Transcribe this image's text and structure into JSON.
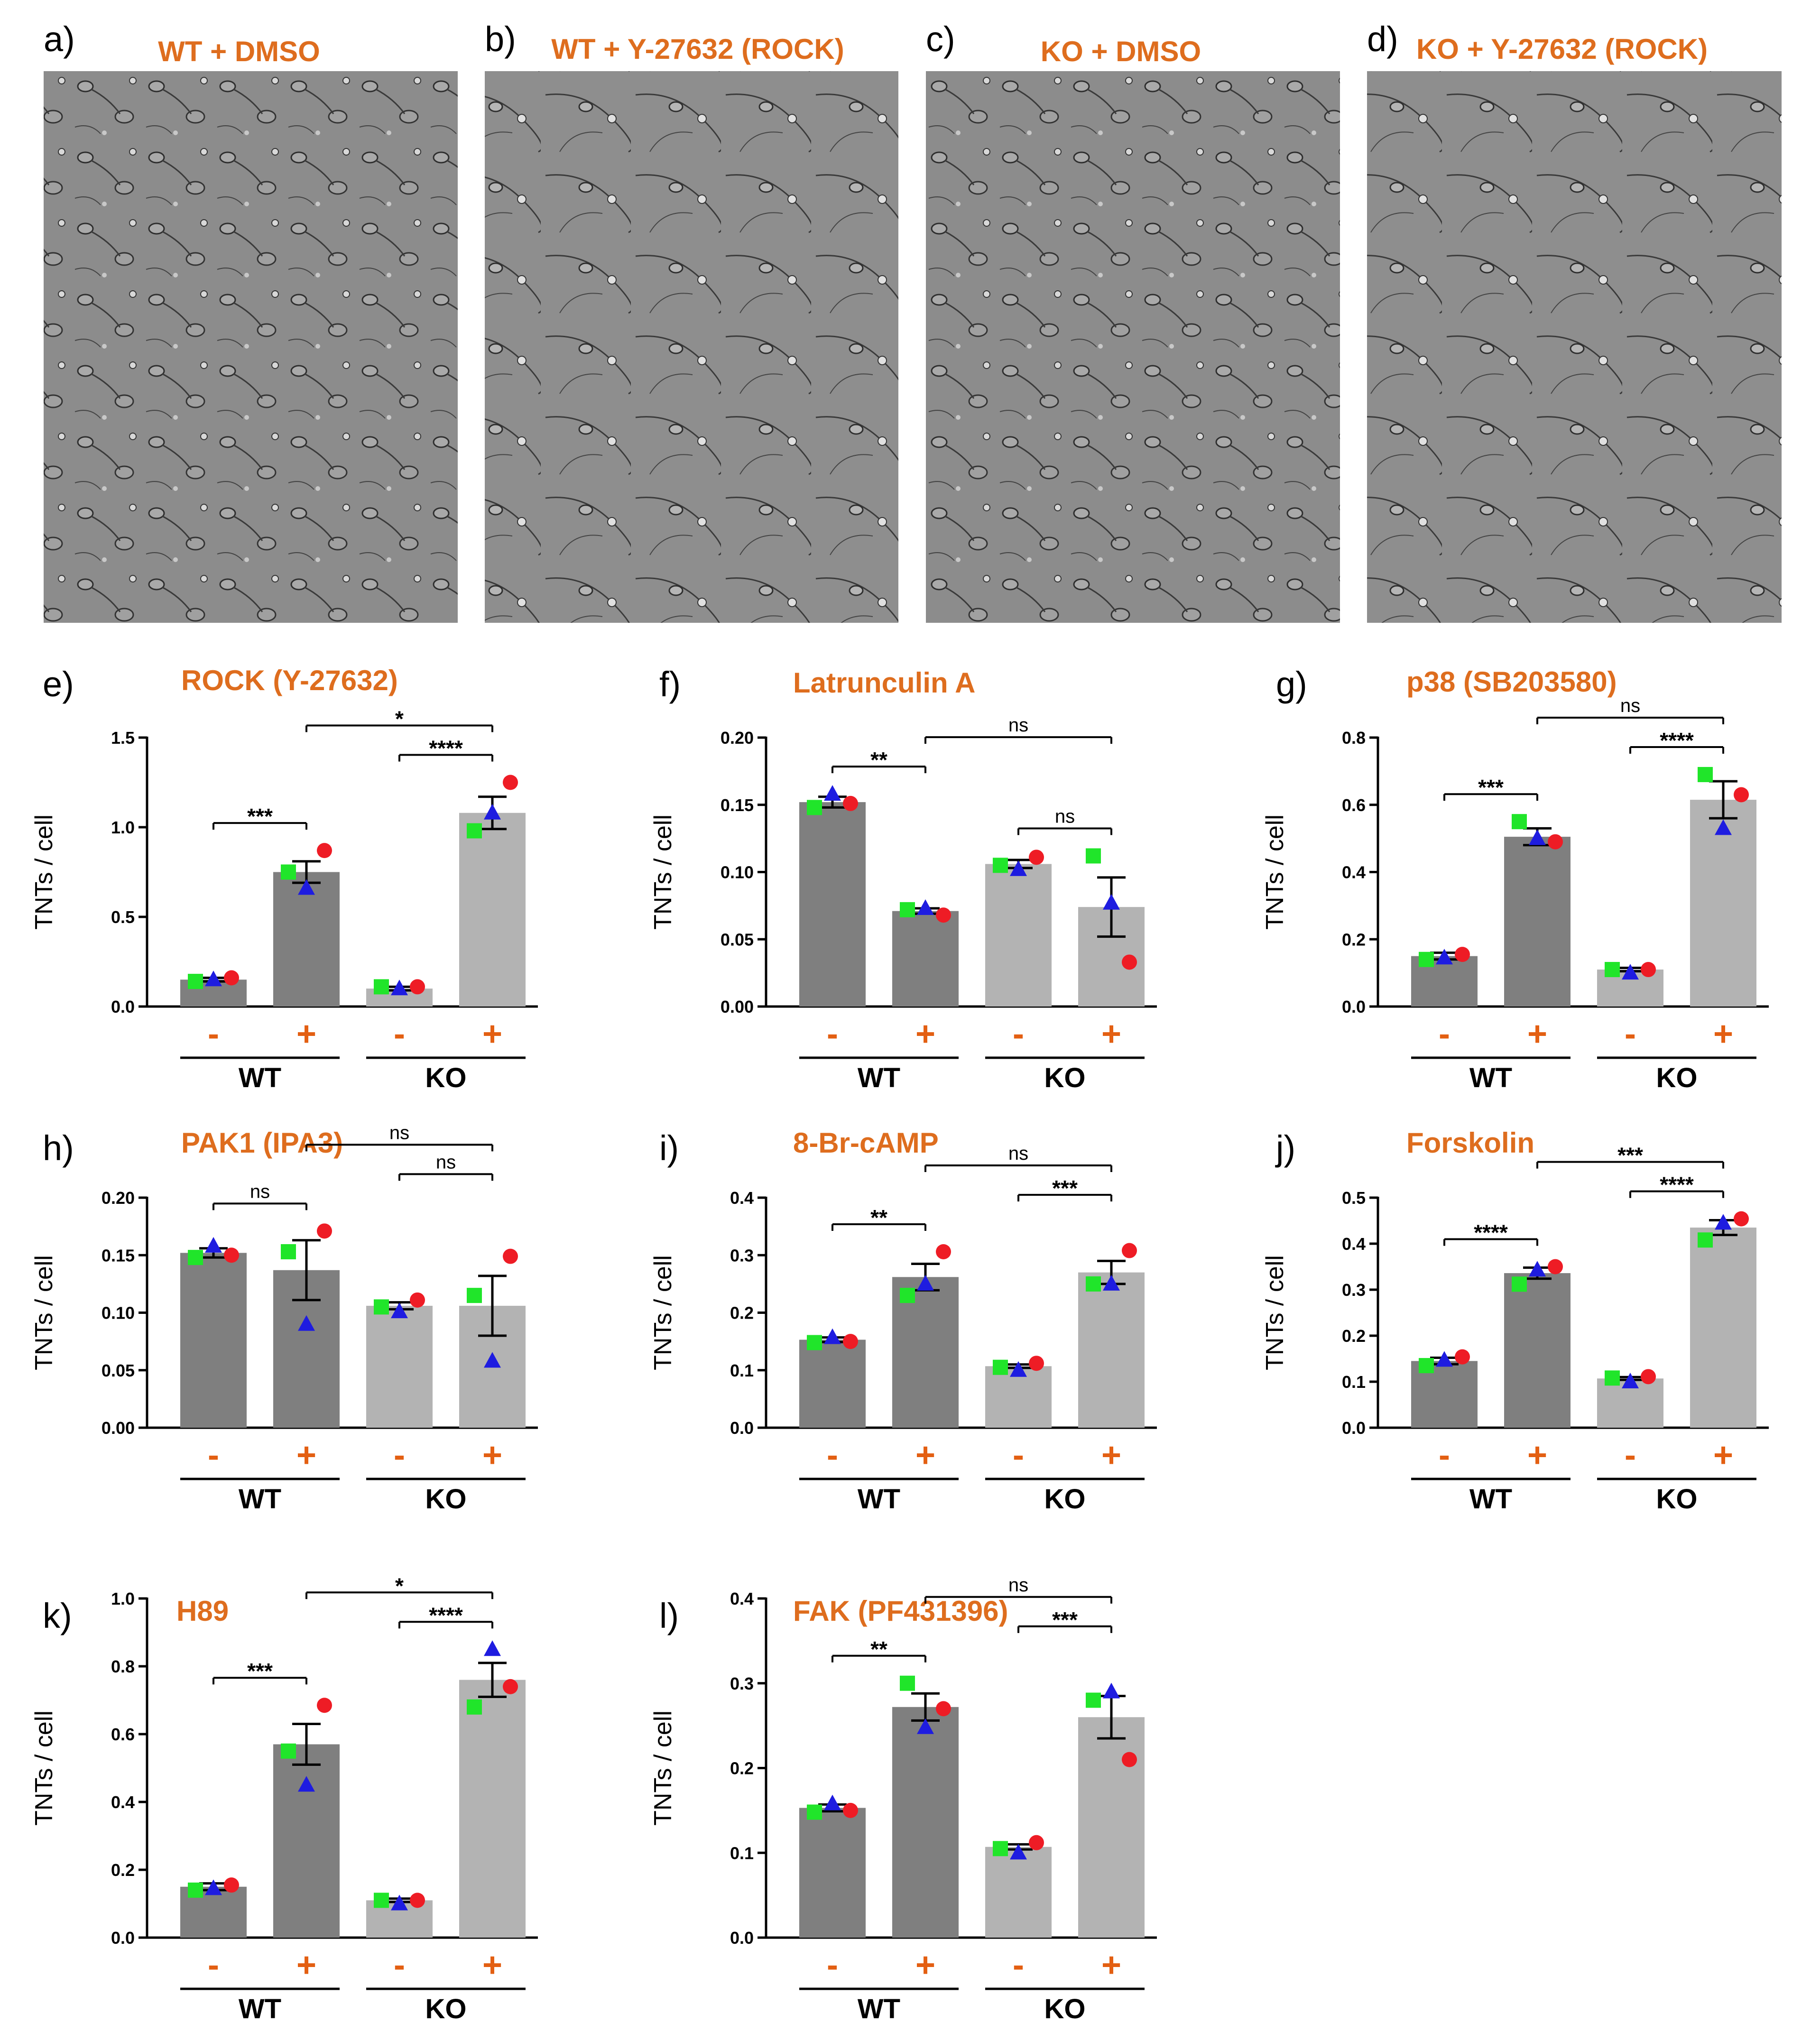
{
  "colors": {
    "title": "#DE6D1E",
    "wt_bar": "#7F7F7F",
    "ko_bar": "#B3B3B3",
    "rep_red": "#EE1C25",
    "rep_green": "#20E52A",
    "rep_blue": "#1E1CE0",
    "minus_sign": "#E35F12",
    "plus_sign": "#E35F12"
  },
  "micrographs": [
    {
      "label": "a)",
      "title": "WT + DMSO"
    },
    {
      "label": "b)",
      "title": "WT + Y-27632 (ROCK)"
    },
    {
      "label": "c)",
      "title": "KO + DMSO"
    },
    {
      "label": "d)",
      "title": "KO + Y-27632 (ROCK)"
    }
  ],
  "chart_data": [
    {
      "label": "e)",
      "title": "ROCK (Y-27632)",
      "type": "bar",
      "ylabel": "TNTs / cell",
      "yticks": [
        "0.0",
        "0.5",
        "1.0",
        "1.5"
      ],
      "ylim": [
        0,
        1.5
      ],
      "categories": [
        "WT -",
        "WT +",
        "KO -",
        "KO +"
      ],
      "signs": [
        "-",
        "+",
        "-",
        "+"
      ],
      "groups": [
        "WT",
        "KO"
      ],
      "values": [
        0.15,
        0.75,
        0.1,
        1.08
      ],
      "errors": [
        0.01,
        0.06,
        0.01,
        0.09
      ],
      "replicates": [
        {
          "name": "red",
          "values": [
            0.16,
            0.87,
            0.11,
            1.25
          ]
        },
        {
          "name": "green",
          "values": [
            0.14,
            0.75,
            0.11,
            0.98
          ]
        },
        {
          "name": "blue",
          "values": [
            0.15,
            0.66,
            0.1,
            1.08
          ]
        }
      ],
      "comparisons": [
        {
          "from": 0,
          "to": 1,
          "label": "***"
        },
        {
          "from": 2,
          "to": 3,
          "label": "****"
        },
        {
          "from": 1,
          "to": 3,
          "label": "*"
        }
      ]
    },
    {
      "label": "f)",
      "title": "Latrunculin A",
      "type": "bar",
      "ylabel": "TNTs / cell",
      "yticks": [
        "0.00",
        "0.05",
        "0.10",
        "0.15",
        "0.20"
      ],
      "ylim": [
        0,
        0.2
      ],
      "categories": [
        "WT -",
        "WT +",
        "KO -",
        "KO +"
      ],
      "signs": [
        "-",
        "+",
        "-",
        "+"
      ],
      "groups": [
        "WT",
        "KO"
      ],
      "values": [
        0.152,
        0.071,
        0.106,
        0.074
      ],
      "errors": [
        0.004,
        0.002,
        0.003,
        0.022
      ],
      "replicates": [
        {
          "name": "red",
          "values": [
            0.151,
            0.068,
            0.111,
            0.033
          ]
        },
        {
          "name": "green",
          "values": [
            0.148,
            0.072,
            0.105,
            0.112
          ]
        },
        {
          "name": "blue",
          "values": [
            0.158,
            0.073,
            0.102,
            0.077
          ]
        }
      ],
      "comparisons": [
        {
          "from": 0,
          "to": 1,
          "label": "**"
        },
        {
          "from": 2,
          "to": 3,
          "label": "ns"
        },
        {
          "from": 1,
          "to": 3,
          "label": "ns"
        }
      ]
    },
    {
      "label": "g)",
      "title": "p38 (SB203580)",
      "type": "bar",
      "ylabel": "TNTs / cell",
      "yticks": [
        "0.0",
        "0.2",
        "0.4",
        "0.6",
        "0.8"
      ],
      "ylim": [
        0,
        0.8
      ],
      "categories": [
        "WT -",
        "WT +",
        "KO -",
        "KO +"
      ],
      "signs": [
        "-",
        "+",
        "-",
        "+"
      ],
      "groups": [
        "WT",
        "KO"
      ],
      "values": [
        0.15,
        0.505,
        0.11,
        0.615
      ],
      "errors": [
        0.01,
        0.025,
        0.005,
        0.055
      ],
      "replicates": [
        {
          "name": "red",
          "values": [
            0.155,
            0.49,
            0.11,
            0.63
          ]
        },
        {
          "name": "green",
          "values": [
            0.14,
            0.55,
            0.11,
            0.69
          ]
        },
        {
          "name": "blue",
          "values": [
            0.145,
            0.5,
            0.1,
            0.53
          ]
        }
      ],
      "comparisons": [
        {
          "from": 0,
          "to": 1,
          "label": "***"
        },
        {
          "from": 2,
          "to": 3,
          "label": "****"
        },
        {
          "from": 1,
          "to": 3,
          "label": "ns"
        }
      ]
    },
    {
      "label": "h)",
      "title": "PAK1 (IPA3)",
      "type": "bar",
      "ylabel": "TNTs / cell",
      "yticks": [
        "0.00",
        "0.05",
        "0.10",
        "0.15",
        "0.20"
      ],
      "ylim": [
        0,
        0.2
      ],
      "categories": [
        "WT -",
        "WT +",
        "KO -",
        "KO +"
      ],
      "signs": [
        "-",
        "+",
        "-",
        "+"
      ],
      "groups": [
        "WT",
        "KO"
      ],
      "values": [
        0.152,
        0.137,
        0.106,
        0.106
      ],
      "errors": [
        0.004,
        0.026,
        0.003,
        0.026
      ],
      "replicates": [
        {
          "name": "red",
          "values": [
            0.15,
            0.171,
            0.111,
            0.149
          ]
        },
        {
          "name": "green",
          "values": [
            0.148,
            0.153,
            0.105,
            0.115
          ]
        },
        {
          "name": "blue",
          "values": [
            0.158,
            0.09,
            0.101,
            0.058
          ]
        }
      ],
      "comparisons": [
        {
          "from": 0,
          "to": 1,
          "label": "ns"
        },
        {
          "from": 2,
          "to": 3,
          "label": "ns"
        },
        {
          "from": 1,
          "to": 3,
          "label": "ns"
        }
      ]
    },
    {
      "label": "i)",
      "title": "8-Br-cAMP",
      "type": "bar",
      "ylabel": "TNTs / cell",
      "yticks": [
        "0.0",
        "0.1",
        "0.2",
        "0.3",
        "0.4"
      ],
      "ylim": [
        0,
        0.4
      ],
      "categories": [
        "WT -",
        "WT +",
        "KO -",
        "KO +"
      ],
      "signs": [
        "-",
        "+",
        "-",
        "+"
      ],
      "groups": [
        "WT",
        "KO"
      ],
      "values": [
        0.153,
        0.262,
        0.107,
        0.27
      ],
      "errors": [
        0.004,
        0.023,
        0.003,
        0.02
      ],
      "replicates": [
        {
          "name": "red",
          "values": [
            0.15,
            0.306,
            0.112,
            0.308
          ]
        },
        {
          "name": "green",
          "values": [
            0.148,
            0.23,
            0.105,
            0.25
          ]
        },
        {
          "name": "blue",
          "values": [
            0.157,
            0.25,
            0.1,
            0.25
          ]
        }
      ],
      "comparisons": [
        {
          "from": 0,
          "to": 1,
          "label": "**"
        },
        {
          "from": 2,
          "to": 3,
          "label": "***"
        },
        {
          "from": 1,
          "to": 3,
          "label": "ns"
        }
      ]
    },
    {
      "label": "j)",
      "title": "Forskolin",
      "type": "bar",
      "ylabel": "TNTs / cell",
      "yticks": [
        "0.0",
        "0.1",
        "0.2",
        "0.3",
        "0.4",
        "0.5"
      ],
      "ylim": [
        0,
        0.5
      ],
      "categories": [
        "WT -",
        "WT +",
        "KO -",
        "KO +"
      ],
      "signs": [
        "-",
        "+",
        "-",
        "+"
      ],
      "groups": [
        "WT",
        "KO"
      ],
      "values": [
        0.145,
        0.336,
        0.107,
        0.435
      ],
      "errors": [
        0.007,
        0.012,
        0.003,
        0.016
      ],
      "replicates": [
        {
          "name": "red",
          "values": [
            0.154,
            0.35,
            0.111,
            0.454
          ]
        },
        {
          "name": "green",
          "values": [
            0.135,
            0.312,
            0.108,
            0.408
          ]
        },
        {
          "name": "blue",
          "values": [
            0.147,
            0.343,
            0.1,
            0.445
          ]
        }
      ],
      "comparisons": [
        {
          "from": 0,
          "to": 1,
          "label": "****"
        },
        {
          "from": 2,
          "to": 3,
          "label": "****"
        },
        {
          "from": 1,
          "to": 3,
          "label": "***"
        }
      ]
    },
    {
      "label": "k)",
      "title": "H89",
      "type": "bar",
      "ylabel": "TNTs / cell",
      "yticks": [
        "0.0",
        "0.2",
        "0.4",
        "0.6",
        "0.8",
        "1.0"
      ],
      "ylim": [
        0,
        1.0
      ],
      "categories": [
        "WT -",
        "WT +",
        "KO -",
        "KO +"
      ],
      "signs": [
        "-",
        "+",
        "-",
        "+"
      ],
      "groups": [
        "WT",
        "KO"
      ],
      "values": [
        0.15,
        0.57,
        0.11,
        0.76
      ],
      "errors": [
        0.01,
        0.06,
        0.005,
        0.05
      ],
      "replicates": [
        {
          "name": "red",
          "values": [
            0.155,
            0.685,
            0.11,
            0.74
          ]
        },
        {
          "name": "green",
          "values": [
            0.14,
            0.55,
            0.11,
            0.68
          ]
        },
        {
          "name": "blue",
          "values": [
            0.145,
            0.45,
            0.1,
            0.85
          ]
        }
      ],
      "comparisons": [
        {
          "from": 0,
          "to": 1,
          "label": "***"
        },
        {
          "from": 2,
          "to": 3,
          "label": "****"
        },
        {
          "from": 1,
          "to": 3,
          "label": "*"
        }
      ]
    },
    {
      "label": "l)",
      "title": "FAK (PF431396)",
      "type": "bar",
      "ylabel": "TNTs / cell",
      "yticks": [
        "0.0",
        "0.1",
        "0.2",
        "0.3",
        "0.4"
      ],
      "ylim": [
        0,
        0.4
      ],
      "categories": [
        "WT -",
        "WT +",
        "KO -",
        "KO +"
      ],
      "signs": [
        "-",
        "+",
        "-",
        "+"
      ],
      "groups": [
        "WT",
        "KO"
      ],
      "values": [
        0.153,
        0.272,
        0.107,
        0.26
      ],
      "errors": [
        0.004,
        0.016,
        0.003,
        0.025
      ],
      "replicates": [
        {
          "name": "red",
          "values": [
            0.15,
            0.27,
            0.112,
            0.21
          ]
        },
        {
          "name": "green",
          "values": [
            0.148,
            0.3,
            0.105,
            0.28
          ]
        },
        {
          "name": "blue",
          "values": [
            0.158,
            0.248,
            0.1,
            0.29
          ]
        }
      ],
      "comparisons": [
        {
          "from": 0,
          "to": 1,
          "label": "**"
        },
        {
          "from": 2,
          "to": 3,
          "label": "***"
        },
        {
          "from": 1,
          "to": 3,
          "label": "ns"
        }
      ]
    }
  ]
}
